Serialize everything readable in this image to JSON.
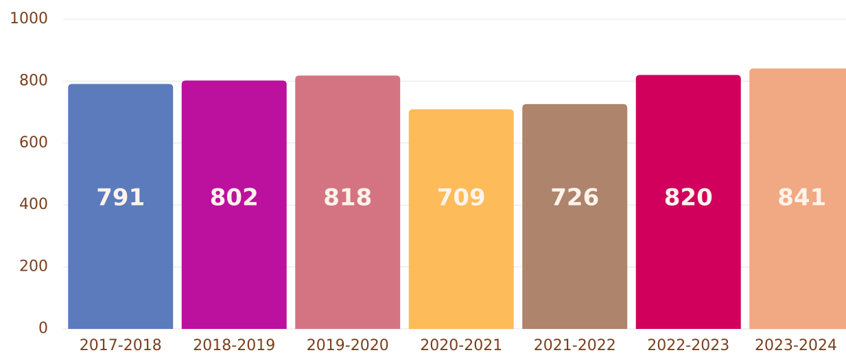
{
  "chart_data": {
    "type": "bar",
    "categories": [
      "2017-2018",
      "2018-2019",
      "2019-2020",
      "2020-2021",
      "2021-2022",
      "2022-2023",
      "2023-2024"
    ],
    "values": [
      791,
      802,
      818,
      709,
      726,
      820,
      841
    ],
    "colors": [
      "#5b7bbd",
      "#bb119e",
      "#d47483",
      "#fdbb5a",
      "#ae846d",
      "#d0005c",
      "#f0a982"
    ],
    "ylim": [
      0,
      1000
    ],
    "yticks": [
      0,
      200,
      400,
      600,
      800,
      1000
    ],
    "grid": true
  }
}
